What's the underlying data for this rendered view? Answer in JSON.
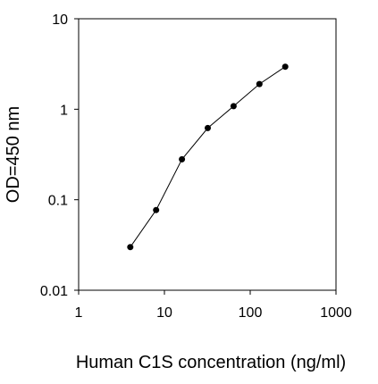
{
  "chart_data": {
    "type": "line",
    "title": "",
    "xlabel": "Human C1S concentration (ng/ml)",
    "ylabel": "OD=450 nm",
    "x_scale": "log",
    "y_scale": "log",
    "xlim": [
      1,
      1000
    ],
    "ylim": [
      0.01,
      10
    ],
    "x_ticks": [
      "1",
      "10",
      "100",
      "1000"
    ],
    "y_ticks": [
      "10",
      "1",
      "0.1",
      "0.01"
    ],
    "grid": false,
    "legend": "none",
    "line_color": "#000000",
    "marker_color": "#000000",
    "series": [
      {
        "x": [
          4,
          8,
          16,
          32,
          64,
          128,
          256
        ],
        "y": [
          0.03,
          0.077,
          0.28,
          0.62,
          1.08,
          1.9,
          2.95
        ]
      }
    ]
  }
}
